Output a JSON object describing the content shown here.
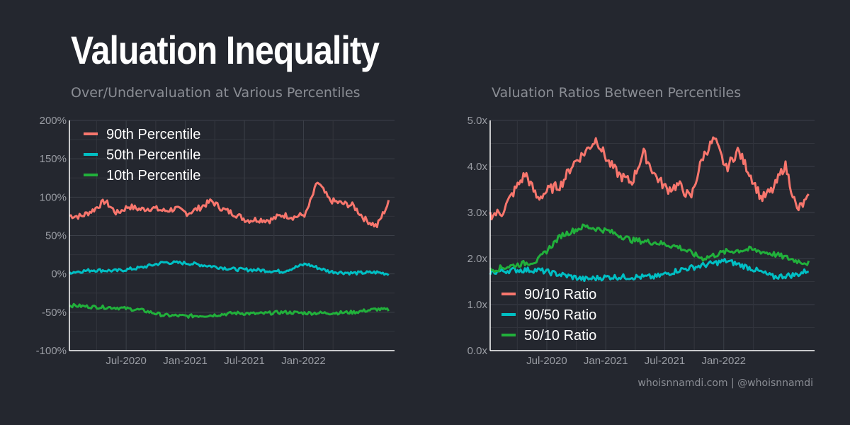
{
  "title": "Valuation Inequality",
  "footer": "whoisnnamdi.com | @whoisnnamdi",
  "chart_data": [
    {
      "type": "line",
      "title": "Over/Undervaluation at Various Percentiles",
      "ylim": [
        -100,
        200
      ],
      "y_ticks": [
        "200%",
        "150%",
        "100%",
        "50%",
        "0%",
        "-50%",
        "-100%"
      ],
      "x_ticks": [
        "Jul-2020",
        "Jan-2021",
        "Jul-2021",
        "Jan-2022"
      ],
      "legend_position": "top-left",
      "series": [
        {
          "name": "90th Percentile",
          "color": "#f8766d",
          "x": [
            0,
            0.1,
            0.2,
            0.3,
            0.4,
            0.5,
            0.6,
            0.7,
            0.8,
            0.9,
            1,
            1.1,
            1.2,
            1.3,
            1.4,
            1.5,
            1.6,
            1.7,
            1.8,
            1.9,
            2,
            2.1,
            2.2,
            2.3,
            2.4,
            2.5,
            2.6,
            2.7
          ],
          "values": [
            76,
            75,
            83,
            95,
            79,
            88,
            84,
            86,
            82,
            85,
            79,
            86,
            95,
            84,
            78,
            70,
            71,
            70,
            77,
            74,
            78,
            120,
            96,
            92,
            89,
            71,
            62,
            93
          ]
        },
        {
          "name": "50th Percentile",
          "color": "#00bfc4",
          "x": [
            0,
            0.2,
            0.4,
            0.6,
            0.8,
            1,
            1.2,
            1.4,
            1.6,
            1.8,
            2,
            2.2,
            2.4,
            2.6,
            2.7
          ],
          "values": [
            2,
            5,
            4,
            8,
            15,
            14,
            10,
            6,
            5,
            3,
            13,
            3,
            1,
            2,
            0
          ]
        },
        {
          "name": "10th Percentile",
          "color": "#21b03b",
          "x": [
            0,
            0.2,
            0.4,
            0.6,
            0.8,
            1,
            1.2,
            1.4,
            1.6,
            1.8,
            2,
            2.2,
            2.4,
            2.6,
            2.7
          ],
          "values": [
            -41,
            -43,
            -44,
            -47,
            -54,
            -55,
            -54,
            -51,
            -52,
            -50,
            -51,
            -51,
            -50,
            -46,
            -47
          ]
        }
      ]
    },
    {
      "type": "line",
      "title": "Valuation Ratios Between Percentiles",
      "ylim": [
        0,
        5
      ],
      "y_ticks": [
        "5.0x",
        "4.0x",
        "3.0x",
        "2.0x",
        "1.0x",
        "0.0x"
      ],
      "x_ticks": [
        "Jul-2020",
        "Jan-2021",
        "Jul-2021",
        "Jan-2022"
      ],
      "legend_position": "bottom-left",
      "series": [
        {
          "name": "90/10 Ratio",
          "color": "#f8766d",
          "x": [
            0,
            0.1,
            0.2,
            0.3,
            0.4,
            0.5,
            0.6,
            0.7,
            0.8,
            0.9,
            1,
            1.1,
            1.2,
            1.3,
            1.4,
            1.5,
            1.6,
            1.7,
            1.8,
            1.9,
            2,
            2.1,
            2.2,
            2.3,
            2.4,
            2.5,
            2.6,
            2.7
          ],
          "values": [
            2.95,
            3.0,
            3.45,
            3.85,
            3.3,
            3.5,
            3.6,
            4.05,
            4.3,
            4.6,
            4.1,
            3.8,
            3.65,
            4.3,
            3.8,
            3.5,
            3.6,
            3.3,
            4.2,
            4.6,
            3.95,
            4.35,
            3.85,
            3.3,
            3.5,
            4.05,
            3.05,
            3.3
          ]
        },
        {
          "name": "90/50 Ratio",
          "color": "#00bfc4",
          "x": [
            0,
            0.2,
            0.4,
            0.6,
            0.8,
            1,
            1.2,
            1.4,
            1.6,
            1.8,
            2,
            2.2,
            2.4,
            2.6,
            2.7
          ],
          "values": [
            1.7,
            1.75,
            1.75,
            1.65,
            1.55,
            1.6,
            1.6,
            1.6,
            1.75,
            1.85,
            1.95,
            1.8,
            1.6,
            1.65,
            1.75
          ]
        },
        {
          "name": "50/10 Ratio",
          "color": "#21b03b",
          "x": [
            0,
            0.2,
            0.4,
            0.6,
            0.8,
            1,
            1.2,
            1.4,
            1.6,
            1.8,
            2,
            2.2,
            2.4,
            2.6,
            2.7
          ],
          "values": [
            1.75,
            1.85,
            1.95,
            2.5,
            2.7,
            2.6,
            2.4,
            2.35,
            2.25,
            2.0,
            2.15,
            2.2,
            2.1,
            1.95,
            1.9
          ]
        }
      ]
    }
  ]
}
